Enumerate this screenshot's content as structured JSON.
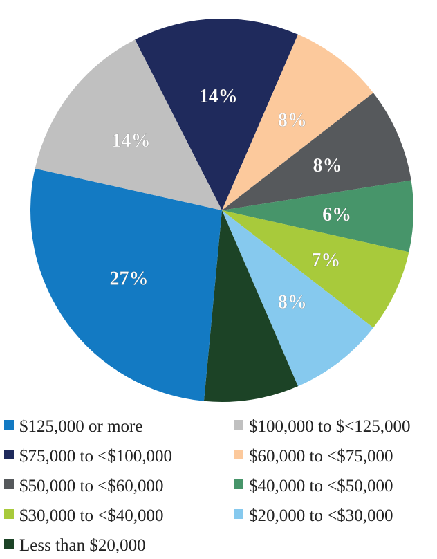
{
  "chart_data": {
    "type": "pie",
    "title": "",
    "categories": [
      "$125,000 or more",
      "$100,000 to $<125,000",
      "$75,000 to <$100,000",
      "$60,000 to <$75,000",
      "$50,000 to <$60,000",
      "$40,000 to <$50,000",
      "$30,000 to <$40,000",
      "$20,000 to <$30,000",
      "Less than $20,000"
    ],
    "values": [
      27,
      14,
      14,
      8,
      8,
      6,
      7,
      8,
      8
    ],
    "data_labels": [
      "27%",
      "14%",
      "14%",
      "8%",
      "8%",
      "6%",
      "7%",
      "8%",
      ""
    ],
    "colors": [
      "#137ac3",
      "#c0c0c0",
      "#1f2a5c",
      "#fcc99c",
      "#56595c",
      "#47956a",
      "#a8ca3b",
      "#86c9ee",
      "#1c4326"
    ],
    "label_colors": [
      "#ffffff",
      "#ffffff",
      "#ffffff",
      "#ffffff",
      "#ffffff",
      "#ffffff",
      "#ffffff",
      "#ffffff",
      "#ffffff"
    ],
    "slice_order": [
      2,
      3,
      4,
      5,
      6,
      7,
      8,
      0,
      1
    ],
    "start_angle_deg": -27,
    "direction": "clockwise",
    "legend": {
      "position": "bottom",
      "columns": 2
    }
  }
}
